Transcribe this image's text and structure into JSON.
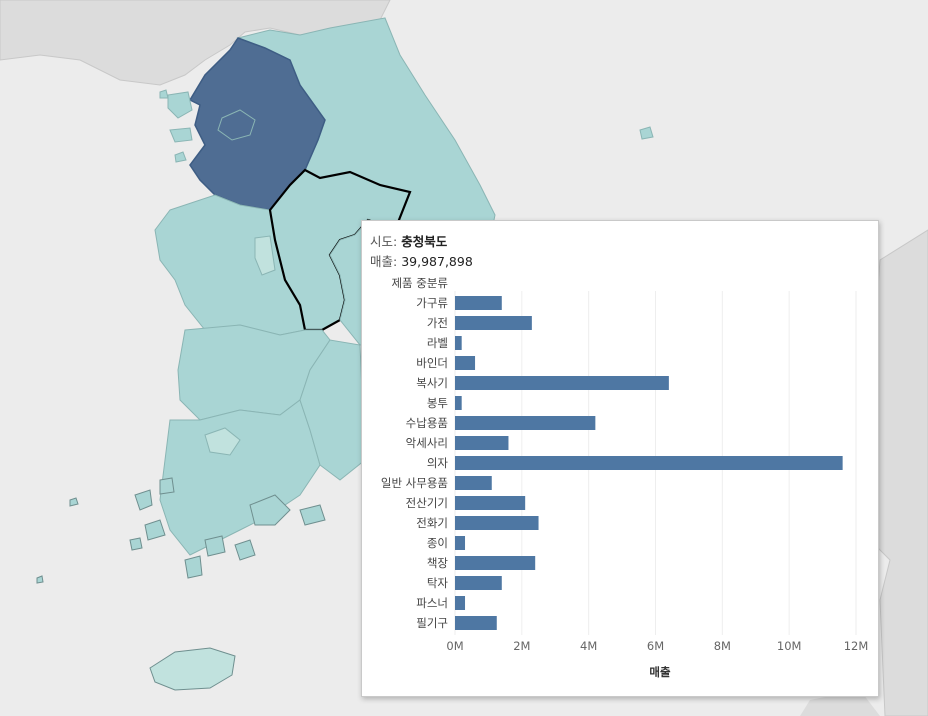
{
  "tooltip": {
    "region_label": "시도:",
    "region_value": "충청북도",
    "sales_label": "매출:",
    "sales_value": "39,987,898"
  },
  "colors": {
    "bar": "#4e77a3",
    "highlight_region": "#4f6d93",
    "region": "#a9d5d4",
    "light_region": "#c1e2de",
    "background_land": "#dddddd",
    "sea": "#ececec",
    "selected_outline": "#000000"
  },
  "chart_data": {
    "type": "bar",
    "orientation": "horizontal",
    "category_header": "제품 중분류",
    "categories": [
      "가구류",
      "가전",
      "라벨",
      "바인더",
      "복사기",
      "봉투",
      "수납용품",
      "악세사리",
      "의자",
      "일반 사무용품",
      "전산기기",
      "전화기",
      "종이",
      "책장",
      "탁자",
      "파스너",
      "필기구"
    ],
    "values": [
      1400000,
      2300000,
      200000,
      600000,
      6400000,
      200000,
      4200000,
      1600000,
      11600000,
      1100000,
      2100000,
      2500000,
      300000,
      2400000,
      1400000,
      300000,
      1250000
    ],
    "xlim": [
      0,
      12000000
    ],
    "xticks": [
      0,
      2000000,
      4000000,
      6000000,
      8000000,
      10000000,
      12000000
    ],
    "xtick_labels": [
      "0M",
      "2M",
      "4M",
      "6M",
      "8M",
      "10M",
      "12M"
    ],
    "xlabel": "매출",
    "grid": "vertical"
  }
}
